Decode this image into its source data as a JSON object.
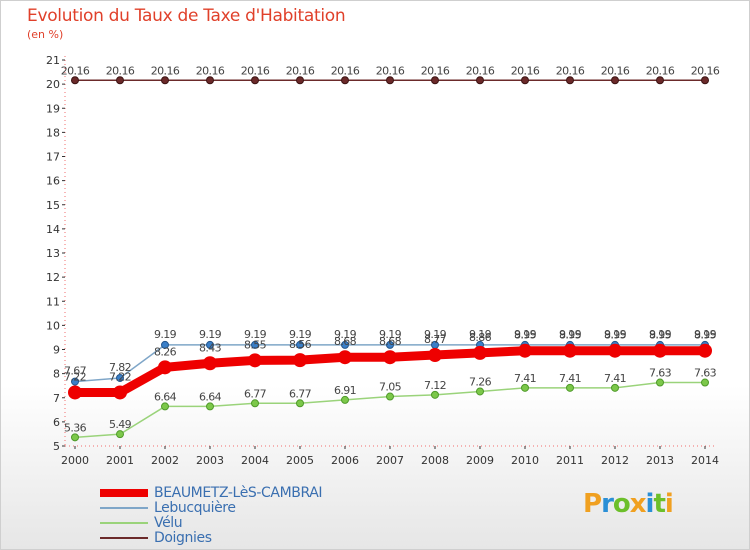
{
  "chart_data": {
    "type": "line",
    "title": "Evolution du Taux de Taxe d'Habitation",
    "subtitle": "(en %)",
    "xlabel": "",
    "ylabel": "",
    "ylim": [
      5,
      21
    ],
    "yticks": [
      5,
      6,
      7,
      8,
      9,
      10,
      11,
      12,
      13,
      14,
      15,
      16,
      17,
      18,
      19,
      20,
      21
    ],
    "categories": [
      "2000",
      "2001",
      "2002",
      "2003",
      "2004",
      "2005",
      "2006",
      "2007",
      "2008",
      "2009",
      "2010",
      "2011",
      "2012",
      "2013",
      "2014"
    ],
    "series": [
      {
        "name": "Doignies",
        "color": "#6b2a2a",
        "values": [
          20.16,
          20.16,
          20.16,
          20.16,
          20.16,
          20.16,
          20.16,
          20.16,
          20.16,
          20.16,
          20.16,
          20.16,
          20.16,
          20.16,
          20.16
        ],
        "labels": [
          "20.16",
          "20.16",
          "20.16",
          "20.16",
          "20.16",
          "20.16",
          "20.16",
          "20.16",
          "20.16",
          "20.16",
          "20.16",
          "20.16",
          "20.16",
          "20.16",
          "20.16"
        ]
      },
      {
        "name": "Lebucquière",
        "color": "#7fa6c8",
        "values": [
          7.67,
          7.82,
          9.19,
          9.19,
          9.19,
          9.19,
          9.19,
          9.19,
          9.19,
          9.19,
          9.19,
          9.19,
          9.19,
          9.19,
          9.19
        ],
        "labels": [
          "7.67",
          "7.82",
          "9.19",
          "9.19",
          "9.19",
          "9.19",
          "9.19",
          "9.19",
          "9.19",
          "9.19",
          "9.19",
          "9.19",
          "9.19",
          "9.19",
          "9.19"
        ]
      },
      {
        "name": "BEAUMETZ-LèS-CAMBRAI",
        "color": "#ee0000",
        "values": [
          7.22,
          7.22,
          8.26,
          8.43,
          8.55,
          8.56,
          8.68,
          8.68,
          8.77,
          8.86,
          8.95,
          8.95,
          8.95,
          8.95,
          8.95
        ],
        "labels": [
          "7.22",
          "7.22",
          "8.26",
          "8.43",
          "8.55",
          "8.56",
          "8.68",
          "8.68",
          "8.77",
          "8.86",
          "8.95",
          "8.95",
          "8.95",
          "8.95",
          "8.95"
        ]
      },
      {
        "name": "Vélu",
        "color": "#9ad37a",
        "values": [
          5.36,
          5.49,
          6.64,
          6.64,
          6.77,
          6.77,
          6.91,
          7.05,
          7.12,
          7.26,
          7.41,
          7.41,
          7.41,
          7.63,
          7.63
        ],
        "labels": [
          "5.36",
          "5.49",
          "6.64",
          "6.64",
          "6.77",
          "6.77",
          "6.91",
          "7.05",
          "7.12",
          "7.26",
          "7.41",
          "7.41",
          "7.41",
          "7.63",
          "7.63"
        ]
      }
    ],
    "legend": [
      "BEAUMETZ-LèS-CAMBRAI",
      "Lebucquière",
      "Vélu",
      "Doignies"
    ],
    "legend_position": "bottom-left",
    "grid": false
  },
  "brand": {
    "letters": [
      "P",
      "r",
      "o",
      "x",
      "i",
      "t",
      "i"
    ],
    "colors": [
      "#f0a020",
      "#2a8fd6",
      "#6cbf2a",
      "#f0a020",
      "#2a8fd6",
      "#6cbf2a",
      "#f0a020"
    ]
  }
}
